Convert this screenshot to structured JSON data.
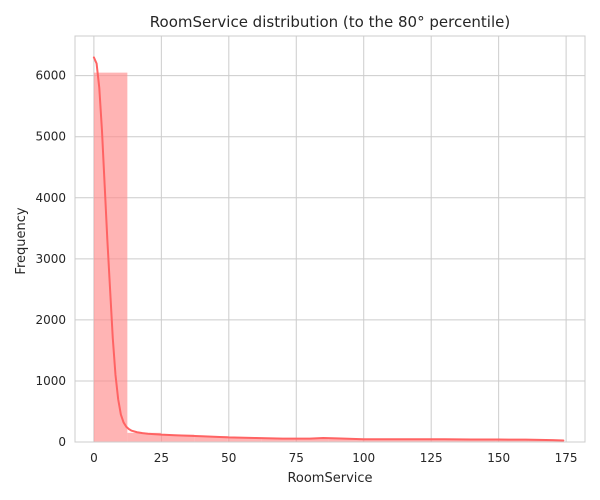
{
  "chart_data": {
    "type": "bar",
    "title": "RoomService distribution (to the 80° percentile)",
    "xlabel": "RoomService",
    "ylabel": "Frequency",
    "xlim": [
      -7,
      182
    ],
    "ylim": [
      0,
      6650
    ],
    "xticks": [
      0,
      25,
      50,
      75,
      100,
      125,
      150,
      175
    ],
    "yticks": [
      0,
      1000,
      2000,
      3000,
      4000,
      5000,
      6000
    ],
    "grid": true,
    "bin_edges": [
      0,
      12.4,
      24.8,
      37.2,
      49.6,
      62.0,
      74.4,
      86.8,
      99.2,
      111.6,
      124.0,
      136.4,
      148.8,
      161.2,
      173.6
    ],
    "values": [
      6050,
      150,
      120,
      95,
      70,
      55,
      50,
      55,
      45,
      42,
      40,
      38,
      36,
      32
    ],
    "kde": {
      "x": [
        0,
        1,
        2,
        3,
        4,
        5,
        6,
        7,
        8,
        9,
        10,
        11,
        12,
        13,
        14,
        16,
        18,
        20,
        25,
        30,
        40,
        50,
        60,
        70,
        80,
        85,
        90,
        100,
        110,
        120,
        130,
        140,
        150,
        160,
        170,
        174
      ],
      "y": [
        6300,
        6200,
        5800,
        5100,
        4200,
        3300,
        2500,
        1700,
        1100,
        700,
        450,
        320,
        250,
        210,
        185,
        160,
        145,
        135,
        120,
        110,
        95,
        75,
        65,
        55,
        55,
        65,
        60,
        45,
        45,
        45,
        45,
        40,
        40,
        38,
        30,
        25
      ]
    },
    "bar_color": "#ff8c8c",
    "line_color": "#ff6363",
    "grid_color": "#cccccc"
  }
}
